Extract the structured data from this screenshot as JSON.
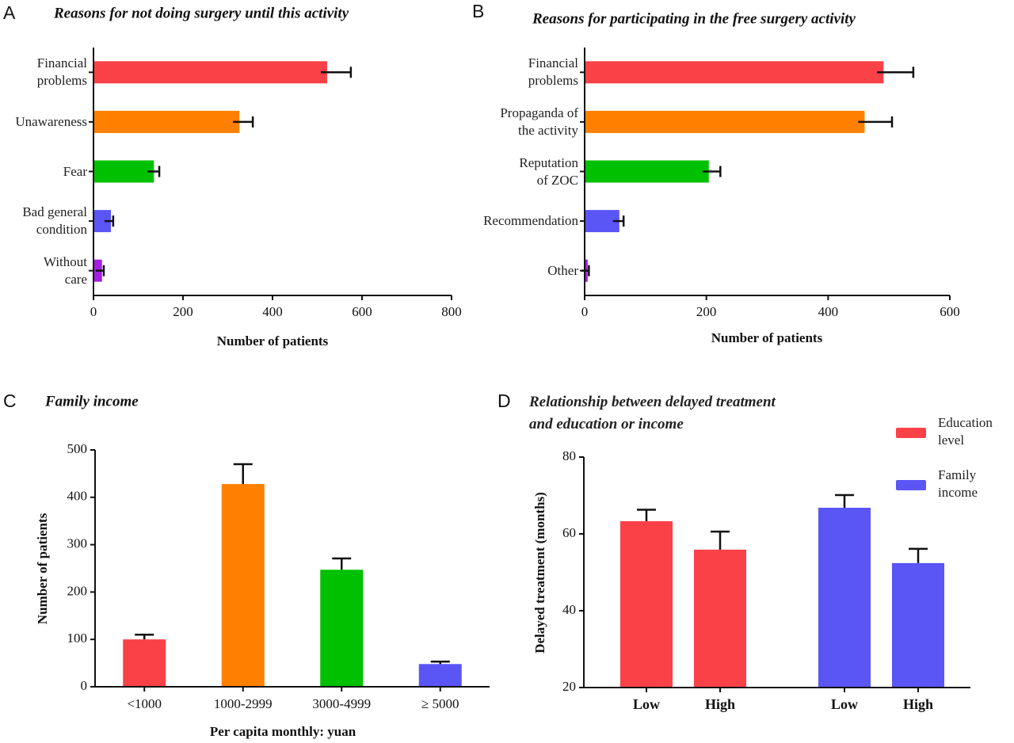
{
  "chart_data": [
    {
      "type": "barh",
      "label": "A",
      "title": "Reasons for not doing surgery until this activity",
      "categories": [
        "Financial\nproblems",
        "Unawareness",
        "Fear",
        "Bad general\ncondition",
        "Without\ncare"
      ],
      "values": [
        522,
        326,
        135,
        39,
        19
      ],
      "errors": [
        53,
        30,
        12,
        5,
        4
      ],
      "colors": [
        "#fa4148",
        "#ff8000",
        "#00c000",
        "#5a55f5",
        "#a61ee0"
      ],
      "xlim": [
        0,
        800
      ],
      "xticks": [
        0,
        200,
        400,
        600,
        800
      ],
      "xlabel": "Number of patients"
    },
    {
      "type": "barh",
      "label": "B",
      "title": "Reasons for participating in the free surgery activity",
      "categories": [
        "Financial\nproblems",
        "Propaganda of\nthe activity",
        "Reputation\nof ZOC",
        "Recommendation",
        "Other"
      ],
      "values": [
        491,
        460,
        204,
        57,
        5
      ],
      "errors": [
        49,
        45,
        19,
        7,
        2
      ],
      "colors": [
        "#fa4148",
        "#ff8000",
        "#00c000",
        "#5a55f5",
        "#a61ee0"
      ],
      "xlim": [
        0,
        600
      ],
      "xticks": [
        0,
        200,
        400,
        600
      ],
      "xlabel": "Number of patients"
    },
    {
      "type": "bar",
      "label": "C",
      "title": "Family income",
      "categories": [
        "<1000",
        "1000-2999",
        "3000-4999",
        "≥ 5000"
      ],
      "values": [
        100,
        428,
        247,
        48
      ],
      "errors": [
        10,
        42,
        24,
        5
      ],
      "colors": [
        "#fa4148",
        "#ff8000",
        "#00c000",
        "#5a55f5"
      ],
      "ylim": [
        0,
        500
      ],
      "yticks": [
        0,
        100,
        200,
        300,
        400,
        500
      ],
      "xlabel": "Per capita monthly: yuan",
      "ylabel": "Number of patients"
    },
    {
      "type": "bar",
      "label": "D",
      "title": "Relationship between delayed treatment\nand education or income",
      "series": [
        {
          "name": "Education\n level",
          "color": "#fa4148",
          "categories": [
            "Low",
            "High"
          ],
          "values": [
            63.3,
            55.9
          ],
          "errors": [
            3,
            4.7
          ]
        },
        {
          "name": "Family\nincome",
          "color": "#5a55f5",
          "categories": [
            "Low",
            "High"
          ],
          "values": [
            66.8,
            52.4
          ],
          "errors": [
            3.3,
            3.7
          ]
        }
      ],
      "ylim": [
        20,
        80
      ],
      "yticks": [
        20,
        40,
        60,
        80
      ],
      "ylabel": "Delayed treatment (months)"
    }
  ]
}
